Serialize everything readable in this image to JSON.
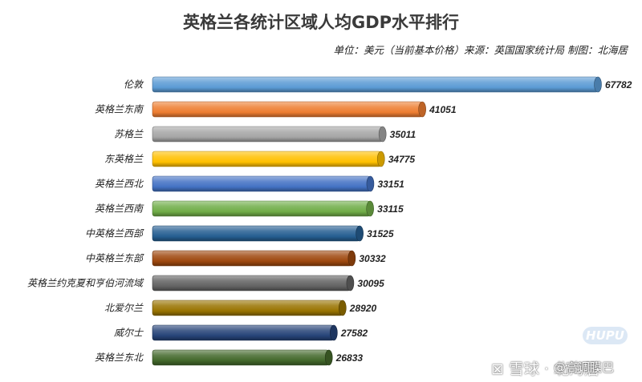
{
  "chart_data": {
    "type": "bar",
    "orientation": "horizontal",
    "title": "英格兰各统计区域人均GDP水平排行",
    "subtitle": "单位：美元（当前基本价格）来源：英国国家统计局 制图：北海居",
    "categories": [
      "伦敦",
      "英格兰东南",
      "苏格兰",
      "东英格兰",
      "英格兰西北",
      "英格兰西南",
      "中英格兰西部",
      "中英格兰东部",
      "英格兰约克夏和亨伯河流域",
      "北爱尔兰",
      "威尔士",
      "英格兰东北"
    ],
    "values": [
      67782,
      41051,
      35011,
      34775,
      33151,
      33115,
      31525,
      30332,
      30095,
      28920,
      27582,
      26833
    ],
    "colors": [
      "#5b9bd5",
      "#ed7d31",
      "#a5a5a5",
      "#ffc000",
      "#4472c4",
      "#70ad47",
      "#255e91",
      "#9e480e",
      "#636363",
      "#997300",
      "#264478",
      "#43682b"
    ],
    "xlim": [
      0,
      67782
    ],
    "grid": false,
    "legend": "none"
  },
  "watermark": {
    "badge": "HUPU",
    "site": "⊠ 雪球 · 北海居",
    "user": "@高调膜巴"
  }
}
